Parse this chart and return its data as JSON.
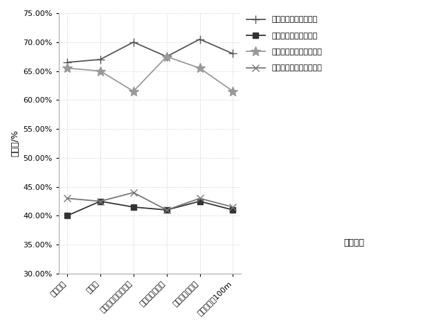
{
  "categories": [
    "掘进迎头",
    "司机处",
    "掘进机转载点下风侧",
    "风筒重合段中部",
    "除尘风机下风侧",
    "距掘进迎头100m"
  ],
  "series": [
    {
      "label": "清水喷雾时全尘降尘率",
      "values": [
        66.5,
        67.0,
        70.0,
        67.5,
        70.5,
        68.0
      ],
      "color": "#555555",
      "marker": "+",
      "linewidth": 1.5,
      "markersize": 9
    },
    {
      "label": "清水喷雾时呼尘降尘率",
      "values": [
        40.0,
        42.5,
        41.5,
        41.0,
        42.5,
        41.0
      ],
      "color": "#333333",
      "marker": "s",
      "linewidth": 1.5,
      "markersize": 6
    },
    {
      "label": "抑尘剂喷雾时全尘降尘率",
      "values": [
        65.5,
        65.0,
        61.5,
        67.5,
        65.5,
        61.5
      ],
      "color": "#999999",
      "marker": "*",
      "linewidth": 1.5,
      "markersize": 9
    },
    {
      "label": "抑尘剂喷雾时呼尘降尘率",
      "values": [
        43.0,
        42.5,
        44.0,
        41.0,
        43.0,
        41.5
      ],
      "color": "#777777",
      "marker": "x",
      "linewidth": 1.5,
      "markersize": 7
    }
  ],
  "ylabel": "降尘率/%",
  "xlabel": "测尘位置",
  "ylim": [
    30.0,
    75.0
  ],
  "yticks": [
    30.0,
    35.0,
    40.0,
    45.0,
    50.0,
    55.0,
    60.0,
    65.0,
    70.0,
    75.0
  ],
  "background_color": "#ffffff",
  "dotted_grid": true
}
